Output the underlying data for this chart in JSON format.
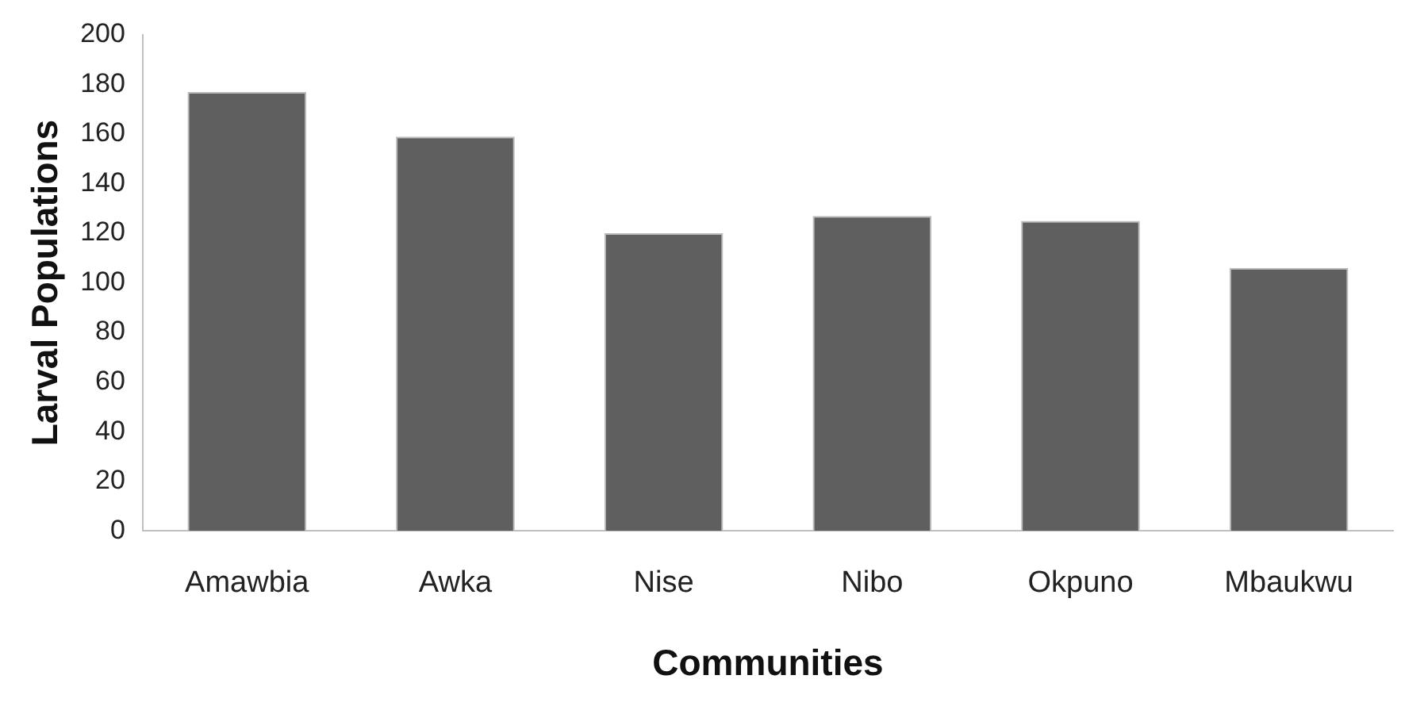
{
  "chart_data": {
    "type": "bar",
    "xlabel": "Communities",
    "ylabel": "Larval Populations",
    "categories": [
      "Amawbia",
      "Awka",
      "Nise",
      "Nibo",
      "Okpuno",
      "Mbaukwu"
    ],
    "values": [
      177,
      159,
      120,
      127,
      125,
      106
    ],
    "color": "#5f5f5f",
    "ylim": [
      0,
      200
    ],
    "yticks": [
      0,
      20,
      40,
      60,
      80,
      100,
      120,
      140,
      160,
      180,
      200
    ],
    "grid": false,
    "legend": false
  }
}
